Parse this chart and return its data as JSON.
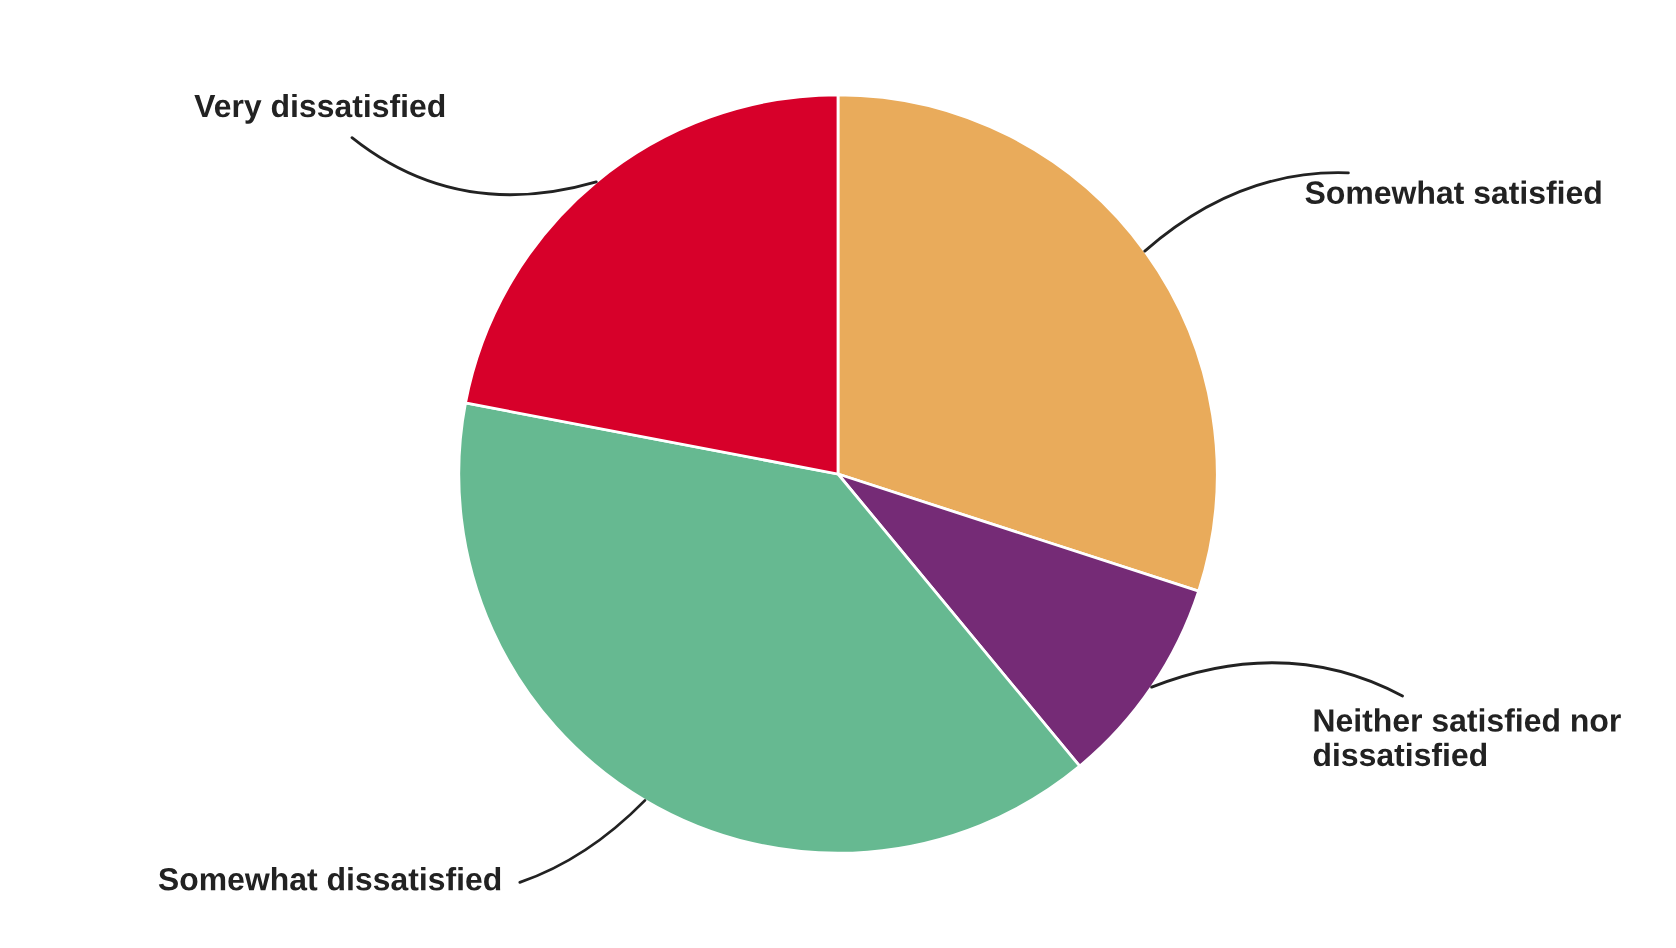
{
  "chart_data": {
    "type": "pie",
    "categories": [
      "Somewhat satisfied",
      "Neither satisfied nor\ndissatisfied",
      "Somewhat dissatisfied",
      "Very dissatisfied"
    ],
    "values": [
      30,
      9,
      39,
      22
    ],
    "colors": [
      "#e9ab5b",
      "#752b76",
      "#66b991",
      "#d7002a"
    ]
  }
}
